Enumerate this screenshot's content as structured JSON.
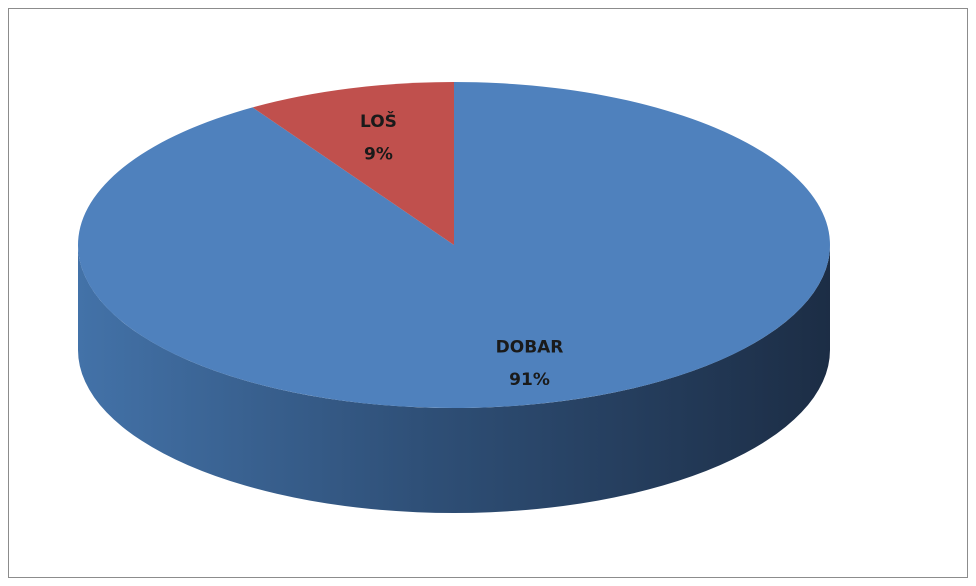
{
  "chart_data": {
    "type": "pie",
    "categories": [
      "DOBAR",
      "LOŠ"
    ],
    "values": [
      91,
      9
    ],
    "value_labels": [
      "91%",
      "9%"
    ],
    "colors": [
      "#4f81bd",
      "#c0504d"
    ]
  }
}
